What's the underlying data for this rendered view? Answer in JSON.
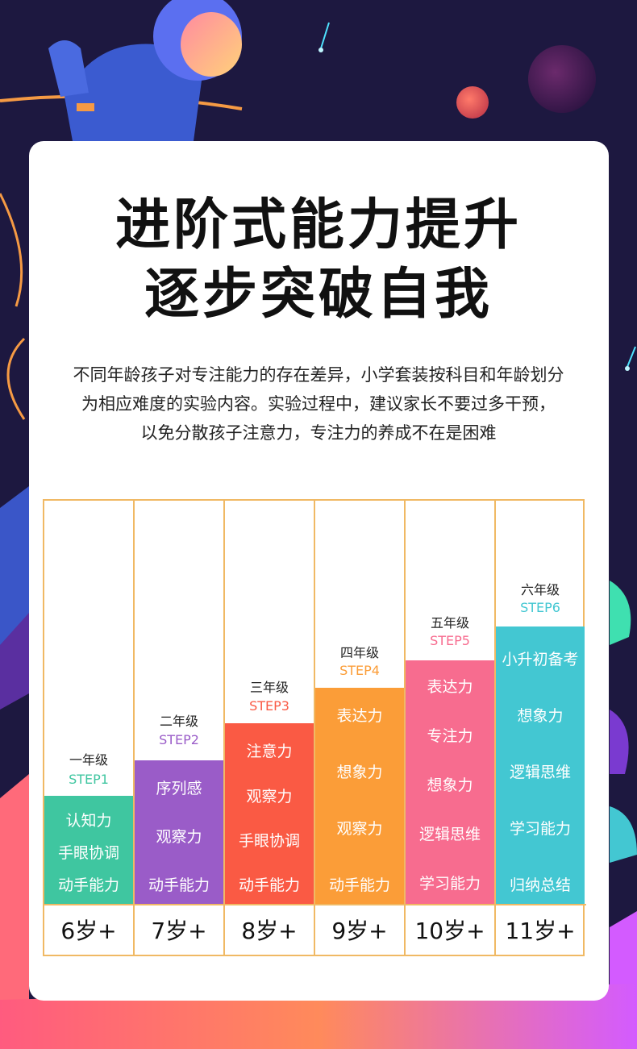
{
  "colors": {
    "background": "#1d1840",
    "card": "#ffffff",
    "table_border": "#f0b964",
    "green": "#3fc6a0",
    "purple": "#9a5cc8",
    "red": "#fa5a44",
    "orange": "#fb9d38",
    "pink": "#f76c8f",
    "cyan": "#43c7d2"
  },
  "title": {
    "line1": "进阶式能力提升",
    "line2": "逐步突破自我"
  },
  "description": {
    "line1": "不同年龄孩子对专注能力的存在差异，小学套装按科目和年龄划分",
    "line2": "为相应难度的实验内容。实验过程中，建议家长不要过多干预，",
    "line3": "以免分散孩子注意力，专注力的养成不在是困难"
  },
  "columns": [
    {
      "grade": "一年级",
      "step": "STEP1",
      "age": "6岁+",
      "skills": [
        "认知力",
        "手眼协调",
        "动手能力"
      ]
    },
    {
      "grade": "二年级",
      "step": "STEP2",
      "age": "7岁+",
      "skills": [
        "序列感",
        "观察力",
        "动手能力"
      ]
    },
    {
      "grade": "三年级",
      "step": "STEP3",
      "age": "8岁+",
      "skills": [
        "注意力",
        "观察力",
        "手眼协调",
        "动手能力"
      ]
    },
    {
      "grade": "四年级",
      "step": "STEP4",
      "age": "9岁+",
      "skills": [
        "表达力",
        "想象力",
        "观察力",
        "动手能力"
      ]
    },
    {
      "grade": "五年级",
      "step": "STEP5",
      "age": "10岁+",
      "skills": [
        "表达力",
        "专注力",
        "想象力",
        "逻辑思维",
        "学习能力"
      ]
    },
    {
      "grade": "六年级",
      "step": "STEP6",
      "age": "11岁+",
      "skills": [
        "小升初备考",
        "想象力",
        "逻辑思维",
        "学习能力",
        "归纳总结"
      ]
    }
  ]
}
